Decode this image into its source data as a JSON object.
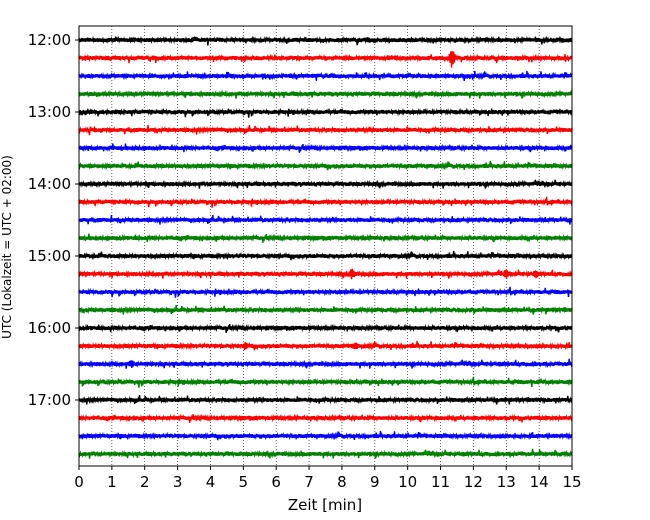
{
  "chart_data": {
    "type": "line",
    "subtype": "helicorder",
    "xlabel": "Zeit  [min]",
    "ylabel": "UTC (Lokalzeit = UTC + 02:00)",
    "xlim": [
      0,
      15
    ],
    "x_ticks": [
      "0",
      "1",
      "2",
      "3",
      "4",
      "5",
      "6",
      "7",
      "8",
      "9",
      "10",
      "11",
      "12",
      "13",
      "14",
      "15"
    ],
    "y_tick_labels": [
      "12:00",
      "13:00",
      "14:00",
      "15:00",
      "16:00",
      "17:00"
    ],
    "trace_count": 24,
    "minutes_per_trace": 15,
    "start_time": "12:00",
    "trace_colors": [
      "#000000",
      "#ff0000",
      "#0000ff",
      "#008000"
    ],
    "grid": "vertical dotted at each minute",
    "notable_events": [
      {
        "trace_start": "12:15",
        "minute": 11.35,
        "amplitude": "large"
      },
      {
        "trace_start": "15:15",
        "minute": 8.3,
        "amplitude": "medium"
      },
      {
        "trace_start": "15:15",
        "minute": 13.0,
        "amplitude": "medium"
      },
      {
        "trace_start": "15:15",
        "minute": 13.9,
        "amplitude": "small"
      },
      {
        "trace_start": "16:15",
        "minute": 5.05,
        "amplitude": "small"
      },
      {
        "trace_start": "16:15",
        "minute": 8.4,
        "amplitude": "small"
      },
      {
        "trace_start": "16:30",
        "minute": 1.6,
        "amplitude": "small"
      }
    ]
  }
}
